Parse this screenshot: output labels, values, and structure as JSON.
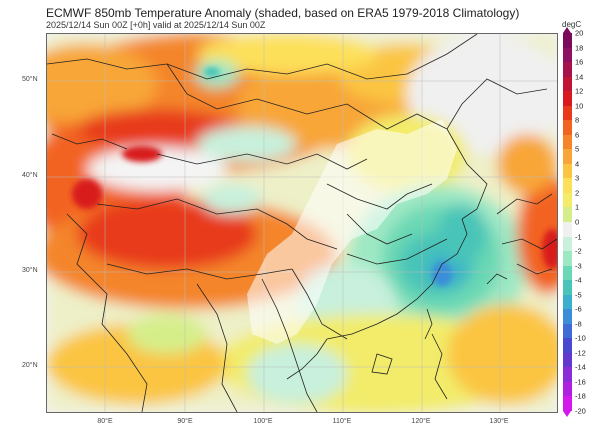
{
  "header": {
    "title": "ECMWF 850mb Temperature Anomaly (shaded, based on ERA5 1979-2018 Climatology)",
    "subtitle": "2025/12/14 Sun 00Z [+0h] valid at 2025/12/14 Sun 00Z"
  },
  "map": {
    "lat_labels": [
      "50°N",
      "40°N",
      "30°N",
      "20°N"
    ],
    "lon_labels": [
      "80°E",
      "90°E",
      "100°E",
      "110°E",
      "120°E",
      "130°E"
    ]
  },
  "colorbar": {
    "unit": "degC",
    "ticks": [
      "20",
      "18",
      "16",
      "14",
      "12",
      "10",
      "8",
      "6",
      "5",
      "4",
      "3",
      "2",
      "1",
      "0",
      "-1",
      "-2",
      "-3",
      "-4",
      "-5",
      "-6",
      "-8",
      "-10",
      "-12",
      "-14",
      "-16",
      "-18",
      "-20"
    ],
    "colors": [
      "#7b0a5a",
      "#8e1060",
      "#a8124b",
      "#c01535",
      "#d81a1f",
      "#e83a1a",
      "#f26322",
      "#f4852a",
      "#f8a638",
      "#fbc542",
      "#fde05a",
      "#f2ec6a",
      "#d6ee8a",
      "#f0f0f0",
      "#c8f0dc",
      "#9ee8c4",
      "#6ad8b4",
      "#48c4b8",
      "#3ab0cc",
      "#3a8ed8",
      "#3e6bd6",
      "#4a48d0",
      "#6238d0",
      "#8a2cd8",
      "#b020e0",
      "#d418ec"
    ]
  }
}
